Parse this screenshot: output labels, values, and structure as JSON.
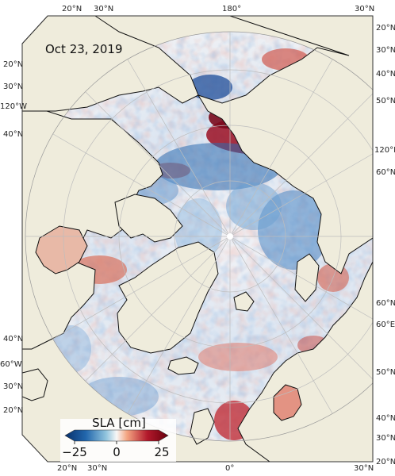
{
  "map": {
    "date": "Oct 23, 2019",
    "projection": "north-polar-stereographic",
    "land_color": "#efecdc",
    "ocean_missing_color": "#ffffff"
  },
  "colorbar": {
    "title": "SLA [cm]",
    "tick_min": "−25",
    "tick_mid": "0",
    "tick_max": "25",
    "colormap": "RdBu_r",
    "color_low": "#08306b",
    "color_mid": "#f7f7f7",
    "color_high": "#67000d"
  },
  "graticule_labels": {
    "top": [
      "20°N",
      "30°N",
      "180°",
      "30°N"
    ],
    "bottom": [
      "20°N",
      "30°N",
      "0°",
      "30°N"
    ],
    "left": [
      "20°N",
      "30°N",
      "120°W",
      "40°N",
      "40°N",
      "60°W",
      "30°N",
      "20°N"
    ],
    "right": [
      "20°N",
      "30°N",
      "40°N",
      "50°N",
      "120°E",
      "60°N",
      "60°N",
      "60°E",
      "50°N",
      "40°N",
      "30°N",
      "20°N"
    ]
  }
}
